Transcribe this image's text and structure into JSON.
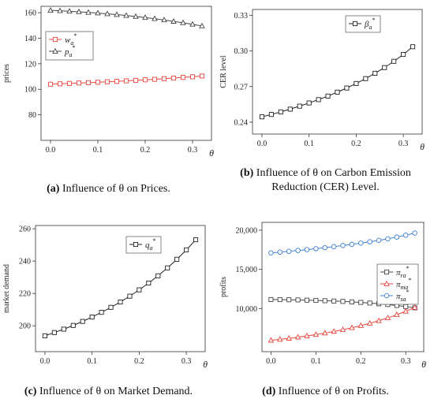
{
  "captions": [
    {
      "tag": "(a)",
      "text": "Influence of  θ  on Prices."
    },
    {
      "tag": "(b)",
      "text": "Influence of  θ  on Carbon Emission Reduction (CER) Level."
    },
    {
      "tag": "(c)",
      "text": "Influence of  θ  on Market Demand."
    },
    {
      "tag": "(d)",
      "text": "Influence of  θ  on Profits."
    }
  ],
  "chart_data": [
    {
      "type": "line",
      "title": "",
      "xlabel": "θ",
      "ylabel": "prices",
      "xlim": [
        -0.02,
        0.34
      ],
      "ylim": [
        60,
        165
      ],
      "xticks": [
        0.0,
        0.1,
        0.2,
        0.3
      ],
      "xtick_labels": [
        "0.0",
        "0.1",
        "0.2",
        "0.3"
      ],
      "yticks": [
        80,
        100,
        120,
        140,
        160
      ],
      "ytick_labels": [
        "80",
        "100",
        "120",
        "140",
        "160"
      ],
      "legend_position": "top-left",
      "x": [
        0.0,
        0.02,
        0.04,
        0.06,
        0.08,
        0.1,
        0.12,
        0.14,
        0.16,
        0.18,
        0.2,
        0.22,
        0.24,
        0.26,
        0.28,
        0.3,
        0.32
      ],
      "series": [
        {
          "name": "w_a*",
          "color": "#e8453c",
          "marker": "square",
          "values": [
            104.0,
            104.3,
            104.6,
            104.9,
            105.2,
            105.5,
            105.9,
            106.2,
            106.6,
            107.0,
            107.4,
            107.8,
            108.3,
            108.8,
            109.3,
            109.8,
            110.4
          ]
        },
        {
          "name": "p_a*",
          "color": "#444444",
          "marker": "triangle",
          "values": [
            161.8,
            161.5,
            161.1,
            160.7,
            160.2,
            159.7,
            159.1,
            158.5,
            157.8,
            157.0,
            156.2,
            155.3,
            154.3,
            153.2,
            152.1,
            150.9,
            149.6
          ]
        }
      ]
    },
    {
      "type": "line",
      "title": "",
      "xlabel": "θ",
      "ylabel": "CER level",
      "xlim": [
        -0.02,
        0.34
      ],
      "ylim": [
        0.23,
        0.335
      ],
      "xticks": [
        0.0,
        0.1,
        0.2,
        0.3
      ],
      "xtick_labels": [
        "0.0",
        "0.1",
        "0.2",
        "0.3"
      ],
      "yticks": [
        0.24,
        0.27,
        0.3,
        0.33
      ],
      "ytick_labels": [
        "0.24",
        "0.27",
        "0.30",
        "0.33"
      ],
      "legend_position": "top-right",
      "x": [
        0.0,
        0.02,
        0.04,
        0.06,
        0.08,
        0.1,
        0.12,
        0.14,
        0.16,
        0.18,
        0.2,
        0.22,
        0.24,
        0.26,
        0.28,
        0.3,
        0.32
      ],
      "series": [
        {
          "name": "β_a*",
          "color": "#222222",
          "marker": "square",
          "values": [
            0.2445,
            0.2465,
            0.2487,
            0.251,
            0.2535,
            0.2562,
            0.259,
            0.262,
            0.2653,
            0.2688,
            0.2726,
            0.2767,
            0.2812,
            0.286,
            0.2913,
            0.2971,
            0.3036
          ]
        }
      ]
    },
    {
      "type": "line",
      "title": "",
      "xlabel": "θ",
      "ylabel": "market demand",
      "xlim": [
        -0.02,
        0.34
      ],
      "ylim": [
        184,
        262
      ],
      "xticks": [
        0.0,
        0.1,
        0.2,
        0.3
      ],
      "xtick_labels": [
        "0.0",
        "0.1",
        "0.2",
        "0.3"
      ],
      "yticks": [
        200,
        220,
        240,
        260
      ],
      "ytick_labels": [
        "200",
        "220",
        "240",
        "260"
      ],
      "legend_position": "top-right",
      "x": [
        0.0,
        0.02,
        0.04,
        0.06,
        0.08,
        0.1,
        0.12,
        0.14,
        0.16,
        0.18,
        0.2,
        0.22,
        0.24,
        0.26,
        0.28,
        0.3,
        0.32
      ],
      "series": [
        {
          "name": "q_a*",
          "color": "#222222",
          "marker": "square",
          "values": [
            193.8,
            195.8,
            197.9,
            200.2,
            202.7,
            205.4,
            208.3,
            211.4,
            214.7,
            218.3,
            222.2,
            226.4,
            230.9,
            235.8,
            241.1,
            246.9,
            253.2
          ]
        }
      ]
    },
    {
      "type": "line",
      "title": "",
      "xlabel": "θ",
      "ylabel": "profits",
      "xlim": [
        -0.02,
        0.34
      ],
      "ylim": [
        4500,
        21000
      ],
      "xticks": [
        0.0,
        0.1,
        0.2,
        0.3
      ],
      "xtick_labels": [
        "0.0",
        "0.1",
        "0.2",
        "0.3"
      ],
      "yticks": [
        10000,
        15000,
        20000
      ],
      "ytick_labels": [
        "10,000",
        "15,000",
        "20,000"
      ],
      "legend_position": "center-right",
      "x": [
        0.0,
        0.02,
        0.04,
        0.06,
        0.08,
        0.1,
        0.12,
        0.14,
        0.16,
        0.18,
        0.2,
        0.22,
        0.24,
        0.26,
        0.28,
        0.3,
        0.32
      ],
      "series": [
        {
          "name": "π_ra*",
          "color": "#444444",
          "marker": "square",
          "values": [
            11150,
            11140,
            11120,
            11100,
            11070,
            11040,
            11000,
            10960,
            10910,
            10850,
            10780,
            10700,
            10610,
            10510,
            10390,
            10250,
            10090
          ]
        },
        {
          "name": "π_ma*",
          "color": "#e8453c",
          "marker": "triangle",
          "values": [
            5950,
            6070,
            6200,
            6350,
            6510,
            6680,
            6870,
            7080,
            7300,
            7550,
            7820,
            8120,
            8450,
            8810,
            9210,
            9650,
            10140
          ]
        },
        {
          "name": "π_sa*",
          "color": "#3d7fd1",
          "marker": "circle",
          "values": [
            17100,
            17200,
            17300,
            17410,
            17520,
            17640,
            17770,
            17900,
            18040,
            18190,
            18350,
            18520,
            18700,
            18900,
            19120,
            19360,
            19630
          ]
        }
      ]
    }
  ]
}
